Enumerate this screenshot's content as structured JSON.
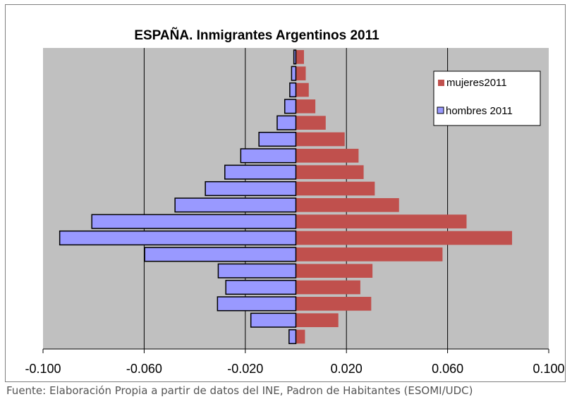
{
  "chart_data": {
    "type": "bar",
    "orientation": "horizontal",
    "title": "ESPAÑA. Inmigrantes Argentinos 2011",
    "xlabel": "",
    "ylabel": "",
    "xlim": [
      -0.1,
      0.1
    ],
    "x_ticks": [
      "-0.100",
      "-0.060",
      "-0.020",
      "0.020",
      "0.060",
      "0.100"
    ],
    "x_tick_values": [
      -0.1,
      -0.06,
      -0.02,
      0.02,
      0.06,
      0.1
    ],
    "grid": "vertical",
    "legend_position": "top-right",
    "series": [
      {
        "name": "mujeres2011",
        "color": "#c0504d",
        "values": [
          0.0036,
          0.0168,
          0.0298,
          0.0255,
          0.0303,
          0.058,
          0.0855,
          0.0675,
          0.0408,
          0.0312,
          0.0268,
          0.0248,
          0.0193,
          0.0118,
          0.0077,
          0.0051,
          0.0039,
          0.0032
        ]
      },
      {
        "name": "hombres 2011",
        "color": "#9999ff",
        "values": [
          -0.0027,
          -0.0178,
          -0.031,
          -0.0277,
          -0.0307,
          -0.0598,
          -0.0934,
          -0.0807,
          -0.0478,
          -0.0358,
          -0.0281,
          -0.0218,
          -0.0146,
          -0.0074,
          -0.0044,
          -0.0024,
          -0.0017,
          -0.0008
        ]
      }
    ]
  },
  "footer": {
    "source": "Fuente: Elaboración Propia a partir de datos del  INE, Padron de Habitantes (ESOMI/UDC)"
  }
}
